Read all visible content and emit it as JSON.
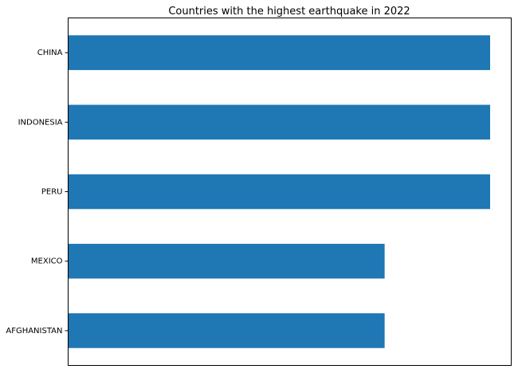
{
  "chart_data": {
    "type": "bar",
    "orientation": "horizontal",
    "title": "Countries with the highest earthquake in 2022",
    "categories": [
      "CHINA",
      "INDONESIA",
      "PERU",
      "MEXICO",
      "AFGHANISTAN"
    ],
    "values": [
      4,
      4,
      4,
      3,
      3
    ],
    "xlabel": "",
    "ylabel": "",
    "xlim": [
      0,
      4.2
    ],
    "x_ticks_visible": false,
    "grid": false,
    "legend": "none",
    "bar_color": "#1f77b4"
  }
}
